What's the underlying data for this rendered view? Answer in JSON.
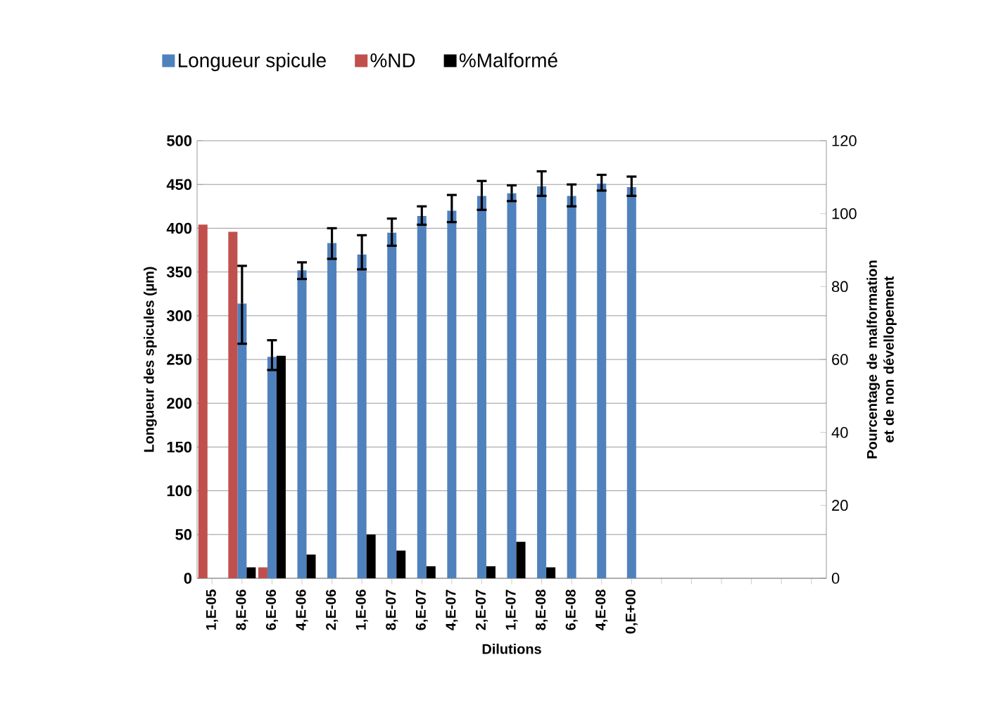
{
  "chart_data": {
    "type": "bar",
    "xlabel": "Dilutions",
    "ylabel": "Longueur des spicules (µm)",
    "y2label": "Pourcentage de malformation et de non dévellopement",
    "categories": [
      "1,E-05",
      "8,E-06",
      "6,E-06",
      "4,E-06",
      "2,E-06",
      "1,E-06",
      "8,E-07",
      "6,E-07",
      "4,E-07",
      "2,E-07",
      "1,E-07",
      "8,E-08",
      "6,E-08",
      "4,E-08",
      "0,E+00",
      null,
      null,
      null,
      null,
      null,
      null
    ],
    "series": [
      {
        "name": "Longueur spicule",
        "color": "#4f81bd",
        "values": [
          null,
          314,
          253,
          352,
          383,
          370,
          395,
          414,
          420,
          437,
          440,
          448,
          437,
          451,
          447,
          null,
          null,
          null,
          null,
          null,
          null
        ],
        "errors": [
          null,
          [
            268,
            357
          ],
          [
            238,
            272
          ],
          [
            342,
            361
          ],
          [
            365,
            400
          ],
          [
            353,
            392
          ],
          [
            380,
            411
          ],
          [
            404,
            425
          ],
          [
            407,
            438
          ],
          [
            421,
            454
          ],
          [
            431,
            449
          ],
          [
            437,
            465
          ],
          [
            425,
            450
          ],
          [
            443,
            461
          ],
          [
            437,
            459
          ],
          null,
          null,
          null,
          null,
          null,
          null
        ]
      },
      {
        "name": "%ND",
        "color": "#c0504d",
        "axis": "y2",
        "values": [
          97,
          95,
          3,
          null,
          null,
          null,
          null,
          null,
          null,
          null,
          null,
          null,
          null,
          null,
          null,
          null,
          null,
          null,
          null,
          null,
          null
        ]
      },
      {
        "name": "%Malformé",
        "color": "#000000",
        "axis": "y2",
        "values": [
          null,
          3,
          61,
          6.5,
          null,
          12,
          7.6,
          3.3,
          null,
          3.3,
          10,
          3,
          null,
          null,
          null,
          null,
          null,
          null,
          null,
          null,
          null
        ]
      }
    ],
    "ylim": [
      0,
      500
    ],
    "yticks": [
      0,
      50,
      100,
      150,
      200,
      250,
      300,
      350,
      400,
      450,
      500
    ],
    "y2lim": [
      0,
      120
    ],
    "y2ticks": [
      0,
      20,
      40,
      60,
      80,
      100,
      120
    ],
    "grid": "y",
    "legend": "top"
  }
}
